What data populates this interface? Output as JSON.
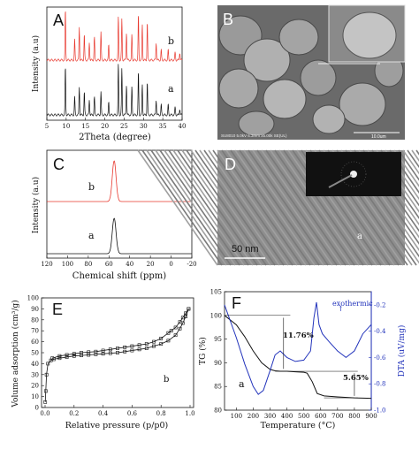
{
  "colors": {
    "red": "#e8392f",
    "black": "#111111",
    "blue": "#2233bb"
  },
  "panels": {
    "A": {
      "letter": "A",
      "xlabel": "2Theta (degree)",
      "ylabel": "Intensity (a.u)",
      "xticks": [
        "5",
        "10",
        "15",
        "20",
        "25",
        "30",
        "35",
        "40"
      ],
      "trace_b": "b",
      "trace_a": "a"
    },
    "B": {
      "letter": "B",
      "caption": "SU8010 5.0kV 6.3mm x5.00k SE(UL)",
      "scalebar": "10.0um"
    },
    "C": {
      "letter": "C",
      "xlabel": "Chemical shift (ppm)",
      "ylabel": "Intensity (a.u)",
      "xticks": [
        "120",
        "100",
        "80",
        "60",
        "40",
        "20",
        "0",
        "-20"
      ],
      "trace_b": "b",
      "trace_a": "a"
    },
    "D": {
      "letter": "D",
      "scalebar": "50 nm",
      "region": "a"
    },
    "E": {
      "letter": "E",
      "xlabel": "Relative pressure (p/p0)",
      "ylabel": "Volume adsorption (cm³/g)",
      "xticks": [
        "0.0",
        "0.2",
        "0.4",
        "0.6",
        "0.8",
        "1.0"
      ],
      "yticks": [
        "0",
        "10",
        "20",
        "30",
        "40",
        "50",
        "60",
        "70",
        "80",
        "90",
        "100"
      ],
      "trace": "b"
    },
    "F": {
      "letter": "F",
      "xlabel": "Temperature (°C)",
      "ylabel_left": "TG (%)",
      "ylabel_right": "DTA (uV/mg)",
      "xticks": [
        "100",
        "200",
        "300",
        "400",
        "500",
        "600",
        "700",
        "800",
        "900"
      ],
      "yticks_left": [
        "80",
        "85",
        "90",
        "95",
        "100",
        "105"
      ],
      "yticks_right": [
        "-1.0",
        "-0.8",
        "-0.6",
        "-0.4",
        "-0.2"
      ],
      "annot_exo": "exothermic",
      "annot_loss1": "11.76%",
      "annot_loss2": "5.65%",
      "trace": "a"
    }
  },
  "chart_data": [
    {
      "type": "line",
      "panel": "A",
      "xlabel": "2Theta (degree)",
      "ylabel": "Intensity (a.u)",
      "xlim": [
        5,
        40
      ],
      "series": [
        {
          "name": "b",
          "peaks": [
            [
              9.8,
              1.0
            ],
            [
              12.2,
              0.4
            ],
            [
              13.4,
              0.65
            ],
            [
              14.7,
              0.5
            ],
            [
              16.0,
              0.35
            ],
            [
              17.3,
              0.45
            ],
            [
              19.0,
              0.55
            ],
            [
              21.0,
              0.3
            ],
            [
              23.5,
              0.85
            ],
            [
              24.4,
              0.8
            ],
            [
              25.6,
              0.55
            ],
            [
              27.0,
              0.5
            ],
            [
              28.7,
              0.9
            ],
            [
              29.7,
              0.7
            ],
            [
              31.0,
              0.75
            ],
            [
              33.3,
              0.35
            ],
            [
              34.6,
              0.2
            ],
            [
              36.4,
              0.2
            ],
            [
              38.2,
              0.15
            ],
            [
              39.4,
              0.15
            ]
          ]
        },
        {
          "name": "a",
          "peaks": [
            [
              9.8,
              0.95
            ],
            [
              12.2,
              0.35
            ],
            [
              13.4,
              0.55
            ],
            [
              14.7,
              0.45
            ],
            [
              16.0,
              0.3
            ],
            [
              17.3,
              0.35
            ],
            [
              19.0,
              0.45
            ],
            [
              21.0,
              0.25
            ],
            [
              23.5,
              1.0
            ],
            [
              24.4,
              0.9
            ],
            [
              25.6,
              0.6
            ],
            [
              27.0,
              0.55
            ],
            [
              28.7,
              0.85
            ],
            [
              29.7,
              0.6
            ],
            [
              31.0,
              0.65
            ],
            [
              33.3,
              0.3
            ],
            [
              34.6,
              0.2
            ],
            [
              36.4,
              0.2
            ],
            [
              38.2,
              0.15
            ],
            [
              39.4,
              0.12
            ]
          ]
        }
      ]
    },
    {
      "type": "line",
      "panel": "C",
      "xlabel": "Chemical shift (ppm)",
      "ylabel": "Intensity (a.u)",
      "xlim": [
        120,
        -20
      ],
      "series": [
        {
          "name": "b",
          "center": 55,
          "width": 2.6,
          "height": 1.0
        },
        {
          "name": "a",
          "center": 55,
          "width": 2.6,
          "height": 1.0
        }
      ]
    },
    {
      "type": "line",
      "panel": "E",
      "xlabel": "Relative pressure (p/p0)",
      "ylabel": "Volume adsorption (cm³/g)",
      "xlim": [
        0,
        1
      ],
      "ylim": [
        0,
        100
      ],
      "series": [
        {
          "name": "adsorption",
          "x": [
            0.001,
            0.005,
            0.01,
            0.02,
            0.04,
            0.06,
            0.1,
            0.15,
            0.2,
            0.25,
            0.3,
            0.35,
            0.4,
            0.45,
            0.5,
            0.55,
            0.6,
            0.65,
            0.7,
            0.75,
            0.8,
            0.85,
            0.9,
            0.93,
            0.95,
            0.97,
            0.99
          ],
          "y": [
            5,
            15,
            30,
            40,
            43,
            44,
            45,
            46,
            47,
            47.5,
            48,
            48.5,
            49,
            49.5,
            50,
            51,
            52,
            53,
            54,
            56,
            58,
            61,
            66,
            72,
            77,
            83,
            90
          ]
        },
        {
          "name": "desorption",
          "x": [
            0.99,
            0.97,
            0.95,
            0.93,
            0.9,
            0.87,
            0.85,
            0.8,
            0.75,
            0.7,
            0.65,
            0.6,
            0.55,
            0.5,
            0.45,
            0.4,
            0.35,
            0.3,
            0.25,
            0.2,
            0.15,
            0.1,
            0.05
          ],
          "y": [
            90,
            86,
            82,
            78,
            73,
            70,
            68,
            63,
            60,
            58,
            57,
            56,
            55,
            54,
            53,
            52,
            51,
            50.5,
            50,
            49,
            48,
            47,
            45
          ]
        }
      ]
    },
    {
      "type": "line",
      "panel": "F",
      "xlabel": "Temperature (°C)",
      "ylabel": "TG (%)",
      "xlim": [
        30,
        900
      ],
      "ylim": [
        80,
        105
      ],
      "series": [
        {
          "name": "TG",
          "x": [
            30,
            100,
            150,
            200,
            250,
            300,
            330,
            360,
            400,
            450,
            500,
            520,
            550,
            580,
            620,
            700,
            800,
            900
          ],
          "y": [
            100,
            98,
            95.5,
            92.5,
            90,
            88.6,
            88.3,
            88.2,
            88.2,
            88.1,
            88.0,
            87.8,
            86,
            83.5,
            83.0,
            82.8,
            82.6,
            82.5
          ]
        },
        {
          "name": "DTA",
          "x": [
            30,
            100,
            150,
            200,
            230,
            260,
            300,
            330,
            360,
            400,
            450,
            500,
            540,
            560,
            575,
            590,
            610,
            650,
            700,
            750,
            800,
            850,
            900
          ],
          "y": [
            -0.2,
            -0.45,
            -0.65,
            -0.82,
            -0.88,
            -0.85,
            -0.7,
            -0.58,
            -0.55,
            -0.6,
            -0.63,
            -0.62,
            -0.55,
            -0.3,
            -0.18,
            -0.35,
            -0.42,
            -0.48,
            -0.55,
            -0.6,
            -0.55,
            -0.42,
            -0.35
          ]
        }
      ]
    }
  ]
}
